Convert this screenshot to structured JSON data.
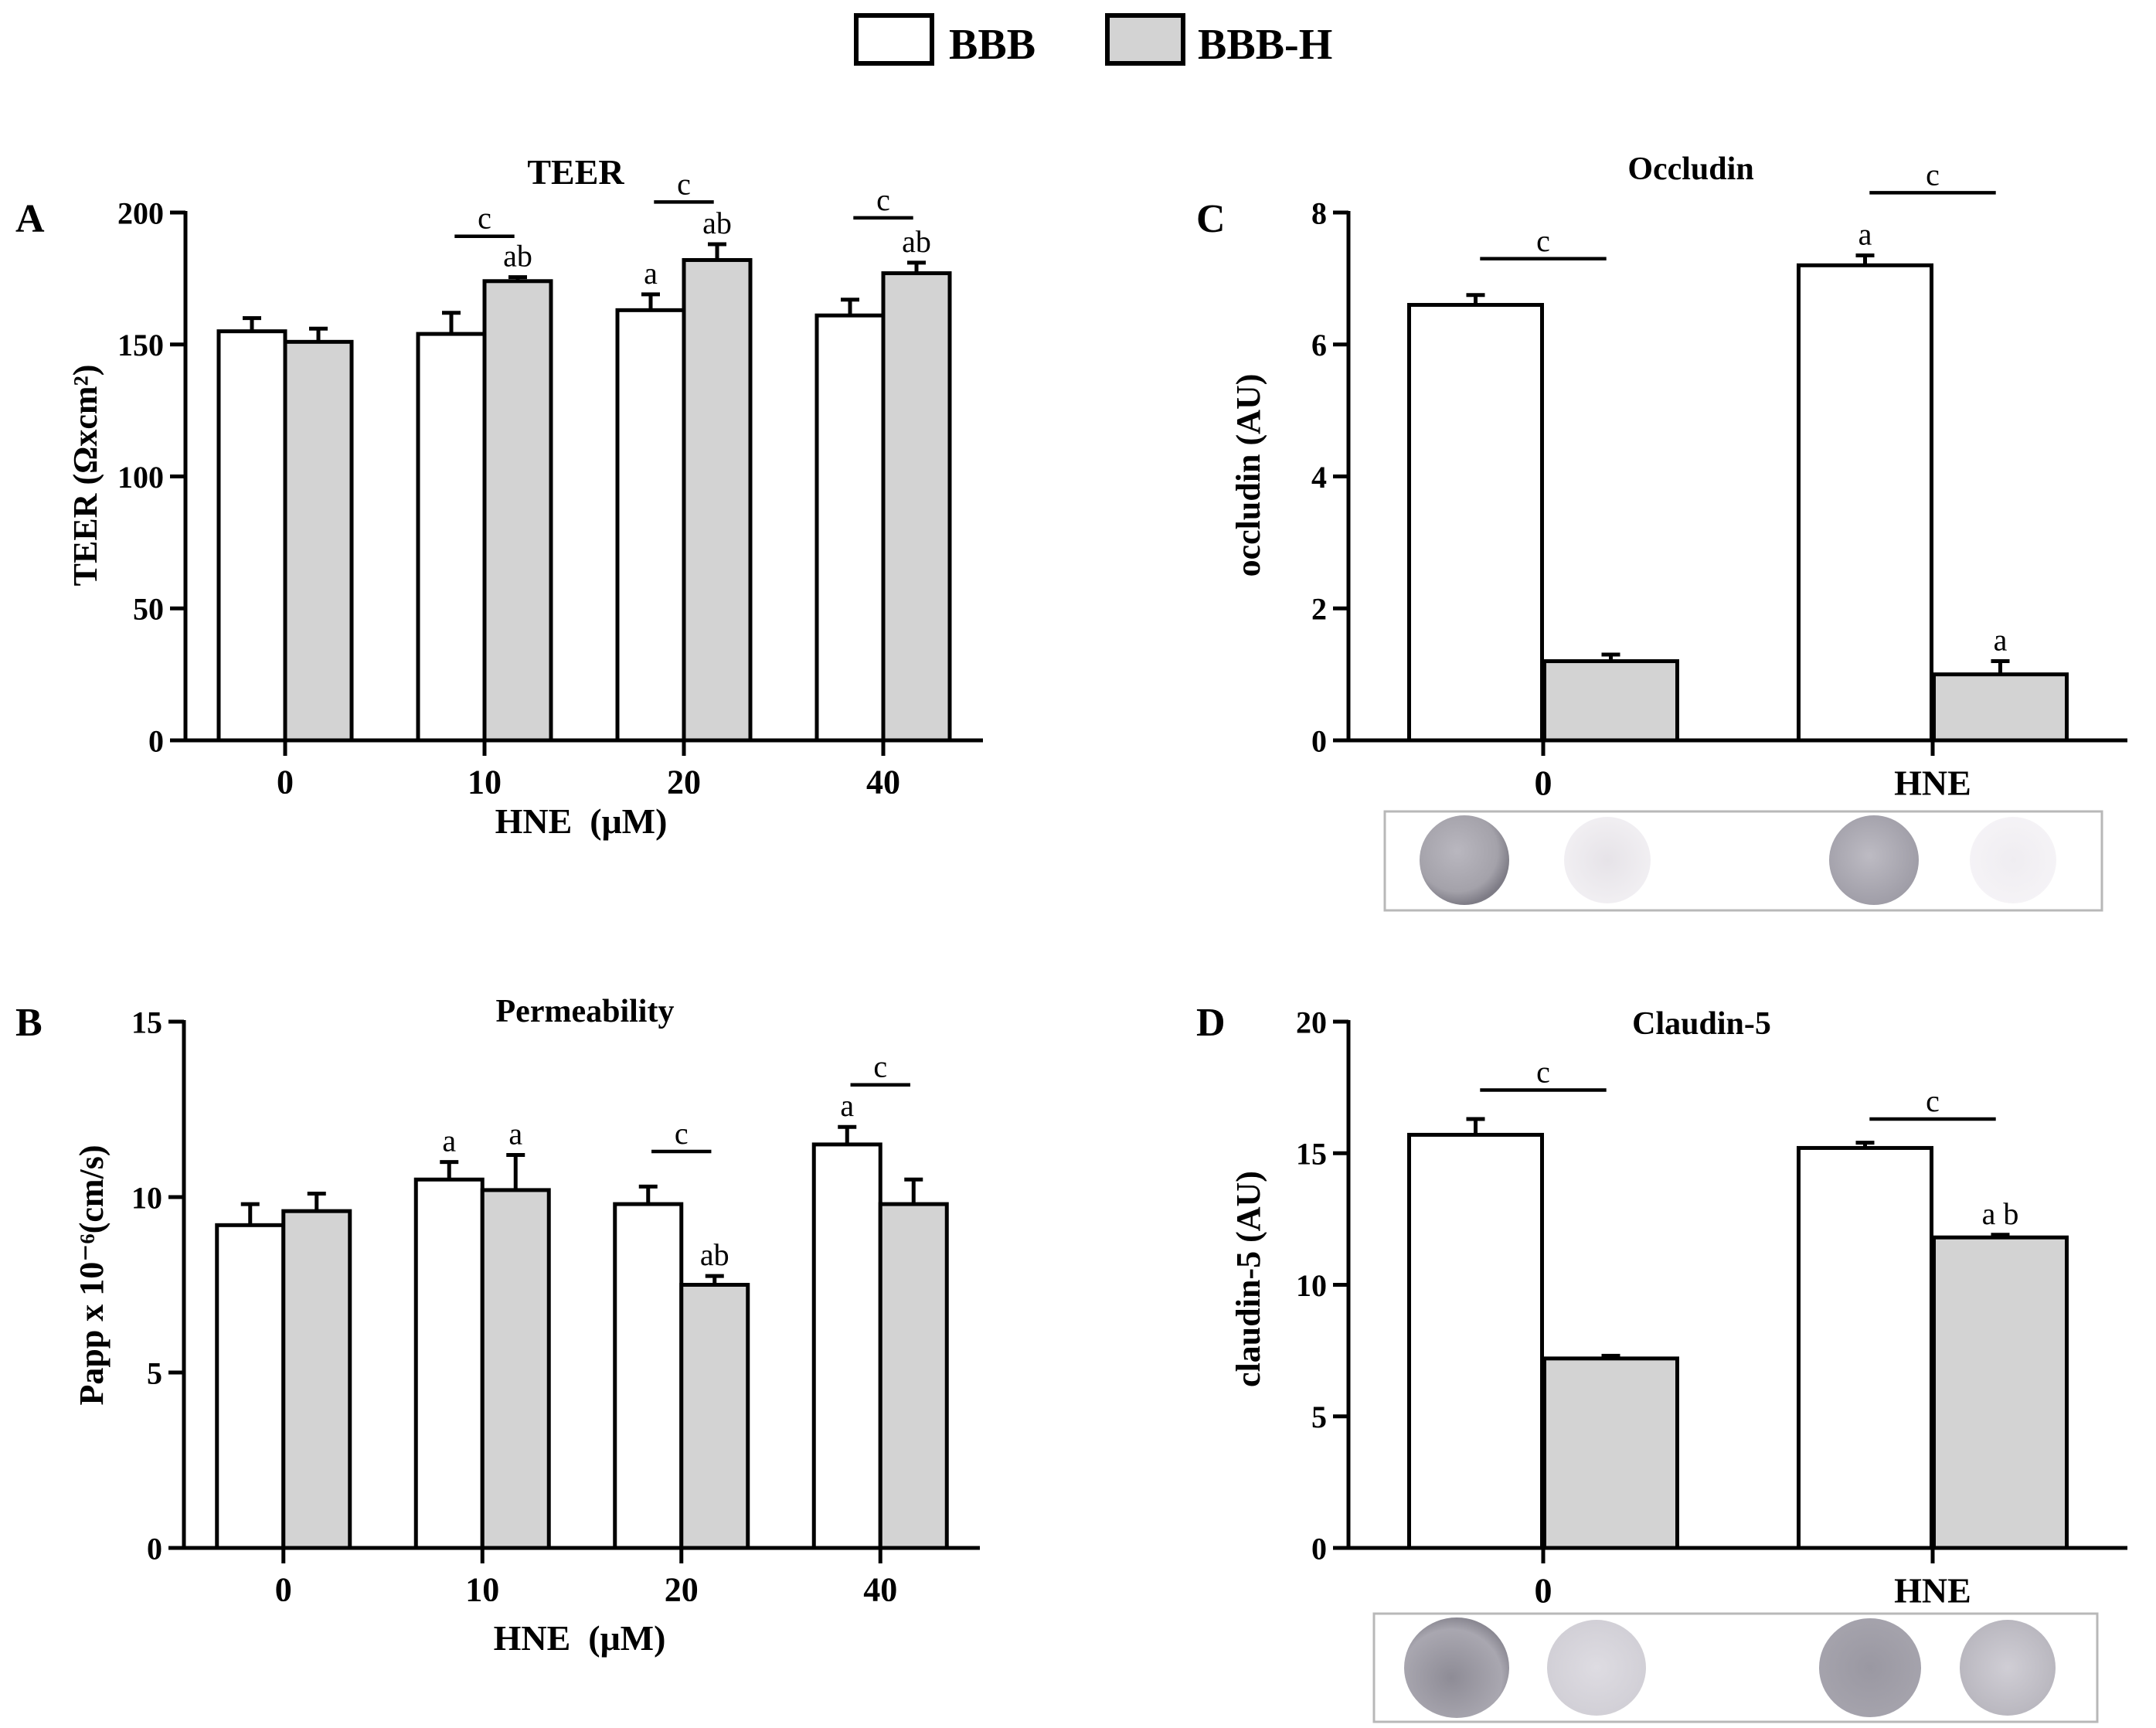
{
  "legend": {
    "items": [
      {
        "label": "BBB",
        "color": "#ffffff"
      },
      {
        "label": "BBB-H",
        "color": "#d3d3d3"
      }
    ]
  },
  "colors": {
    "bbb": "#ffffff",
    "bbb_h": "#d3d3d3",
    "axis": "#000000"
  },
  "chart_data": [
    {
      "id": "A",
      "panel_letter": "A",
      "type": "bar",
      "title": "TEER",
      "ylabel": "TEER (Ωxcm²)",
      "xlabel": "HNE  (μM)",
      "ylim": [
        0,
        200
      ],
      "yticks": [
        0,
        50,
        100,
        150,
        200
      ],
      "categories": [
        "0",
        "10",
        "20",
        "40"
      ],
      "series": [
        {
          "name": "BBB",
          "values": [
            155,
            154,
            163,
            161
          ],
          "errors": [
            5,
            8,
            6,
            6
          ]
        },
        {
          "name": "BBB-H",
          "values": [
            151,
            174,
            182,
            177
          ],
          "errors": [
            5,
            1.5,
            6,
            4
          ]
        }
      ],
      "bar_labels": [
        {
          "category": "10",
          "series": "BBB-H",
          "text": "ab"
        },
        {
          "category": "20",
          "series": "BBB",
          "text": "a"
        },
        {
          "category": "20",
          "series": "BBB-H",
          "text": "ab"
        },
        {
          "category": "40",
          "series": "BBB-H",
          "text": "ab"
        }
      ],
      "significance": [
        {
          "category": "10",
          "text": "c",
          "level": 191
        },
        {
          "category": "20",
          "text": "c",
          "level": 204
        },
        {
          "category": "40",
          "text": "c",
          "level": 198
        }
      ]
    },
    {
      "id": "B",
      "panel_letter": "B",
      "type": "bar",
      "title": "Permeability",
      "ylabel": "Papp x 10⁻⁶(cm/s)",
      "xlabel": "HNE  (μM)",
      "ylim": [
        0,
        15
      ],
      "yticks": [
        0,
        5,
        10,
        15
      ],
      "categories": [
        "0",
        "10",
        "20",
        "40"
      ],
      "series": [
        {
          "name": "BBB",
          "values": [
            9.2,
            10.5,
            9.8,
            11.5
          ],
          "errors": [
            0.6,
            0.5,
            0.5,
            0.5
          ]
        },
        {
          "name": "BBB-H",
          "values": [
            9.6,
            10.2,
            7.5,
            9.8
          ],
          "errors": [
            0.5,
            1.0,
            0.25,
            0.7
          ]
        }
      ],
      "bar_labels": [
        {
          "category": "10",
          "series": "BBB",
          "text": "a"
        },
        {
          "category": "10",
          "series": "BBB-H",
          "text": "a"
        },
        {
          "category": "20",
          "series": "BBB-H",
          "text": "ab"
        },
        {
          "category": "40",
          "series": "BBB",
          "text": "a"
        }
      ],
      "significance": [
        {
          "category": "20",
          "text": "c",
          "level": 11.3
        },
        {
          "category": "40",
          "text": "c",
          "level": 13.2
        }
      ]
    },
    {
      "id": "C",
      "panel_letter": "C",
      "type": "bar",
      "title": "Occludin",
      "ylabel": "occludin (AU)",
      "xlabel": "",
      "ylim": [
        0,
        8
      ],
      "yticks": [
        0,
        2,
        4,
        6,
        8
      ],
      "categories": [
        "0",
        "HNE"
      ],
      "series": [
        {
          "name": "BBB",
          "values": [
            6.6,
            7.2
          ],
          "errors": [
            0.15,
            0.15
          ]
        },
        {
          "name": "BBB-H",
          "values": [
            1.2,
            1.0
          ],
          "errors": [
            0.1,
            0.2
          ]
        }
      ],
      "bar_labels": [
        {
          "category": "HNE",
          "series": "BBB",
          "text": "a"
        },
        {
          "category": "HNE",
          "series": "BBB-H",
          "text": "a"
        }
      ],
      "significance": [
        {
          "category": "0",
          "text": "c",
          "level": 7.3
        },
        {
          "category": "HNE",
          "text": "c",
          "level": 8.3
        }
      ]
    },
    {
      "id": "D",
      "panel_letter": "D",
      "type": "bar",
      "title": "Claudin-5",
      "ylabel": "claudin-5 (AU)",
      "xlabel": "",
      "ylim": [
        0,
        20
      ],
      "yticks": [
        0,
        5,
        10,
        15,
        20
      ],
      "categories": [
        "0",
        "HNE"
      ],
      "series": [
        {
          "name": "BBB",
          "values": [
            15.7,
            15.2
          ],
          "errors": [
            0.6,
            0.2
          ]
        },
        {
          "name": "BBB-H",
          "values": [
            7.2,
            11.8
          ],
          "errors": [
            0.1,
            0.1
          ]
        }
      ],
      "bar_labels": [
        {
          "category": "HNE",
          "series": "BBB-H",
          "text": "a b"
        }
      ],
      "significance": [
        {
          "category": "0",
          "text": "c",
          "level": 17.4
        },
        {
          "category": "HNE",
          "text": "c",
          "level": 16.3
        }
      ]
    }
  ]
}
